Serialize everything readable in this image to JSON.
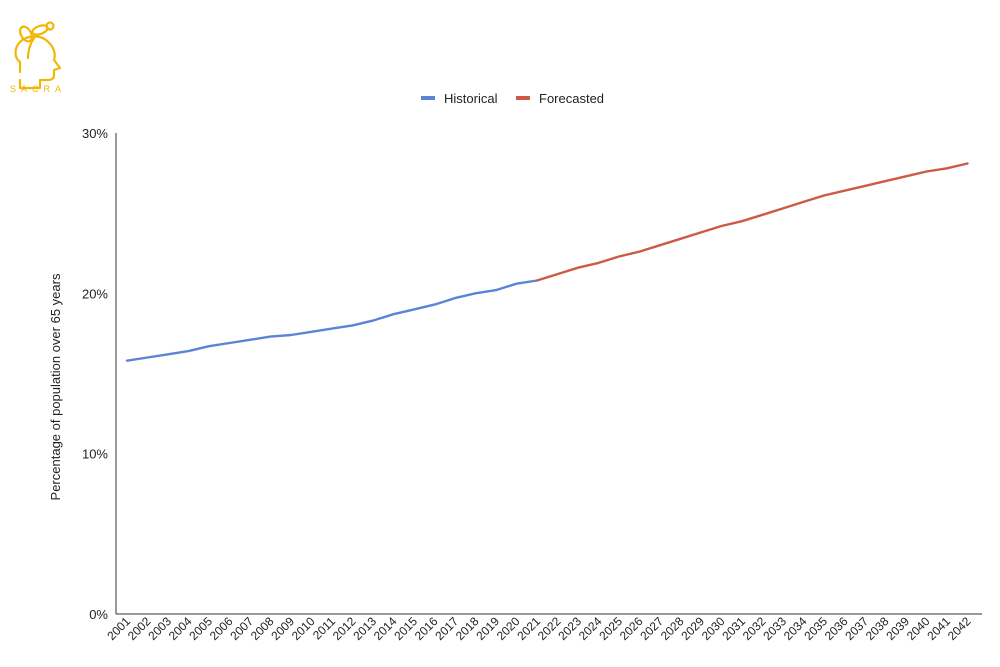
{
  "brand": {
    "name": "SACRA",
    "logo_icon": "head-with-sprout-icon",
    "color": "#f2b705"
  },
  "chart_data": {
    "type": "line",
    "title": "",
    "xlabel": "",
    "ylabel": "Percentage of population over 65 years",
    "ylim": [
      0,
      30
    ],
    "yticks": [
      "0%",
      "10%",
      "20%",
      "30%"
    ],
    "grid": false,
    "legend_position": "top-center",
    "series": [
      {
        "name": "Historical",
        "color": "#5b84d6",
        "x": [
          2001,
          2002,
          2003,
          2004,
          2005,
          2006,
          2007,
          2008,
          2009,
          2010,
          2011,
          2012,
          2013,
          2014,
          2015,
          2016,
          2017,
          2018,
          2019,
          2020,
          2021
        ],
        "values": [
          15.8,
          16.0,
          16.2,
          16.4,
          16.7,
          16.9,
          17.1,
          17.3,
          17.4,
          17.6,
          17.8,
          18.0,
          18.3,
          18.7,
          19.0,
          19.3,
          19.7,
          20.0,
          20.2,
          20.6,
          20.8
        ]
      },
      {
        "name": "Forecasted",
        "color": "#cc5a45",
        "x": [
          2021,
          2022,
          2023,
          2024,
          2025,
          2026,
          2027,
          2028,
          2029,
          2030,
          2031,
          2032,
          2033,
          2034,
          2035,
          2036,
          2037,
          2038,
          2039,
          2040,
          2041,
          2042
        ],
        "values": [
          20.8,
          21.2,
          21.6,
          21.9,
          22.3,
          22.6,
          23.0,
          23.4,
          23.8,
          24.2,
          24.5,
          24.9,
          25.3,
          25.7,
          26.1,
          26.4,
          26.7,
          27.0,
          27.3,
          27.6,
          27.8,
          28.1
        ]
      }
    ],
    "categories": [
      "2001",
      "2002",
      "2003",
      "2004",
      "2005",
      "2006",
      "2007",
      "2008",
      "2009",
      "2010",
      "2011",
      "2012",
      "2013",
      "2014",
      "2015",
      "2016",
      "2017",
      "2018",
      "2019",
      "2020",
      "2021",
      "2022",
      "2023",
      "2024",
      "2025",
      "2026",
      "2027",
      "2028",
      "2029",
      "2030",
      "2031",
      "2032",
      "2033",
      "2034",
      "2035",
      "2036",
      "2037",
      "2038",
      "2039",
      "2040",
      "2041",
      "2042"
    ]
  }
}
